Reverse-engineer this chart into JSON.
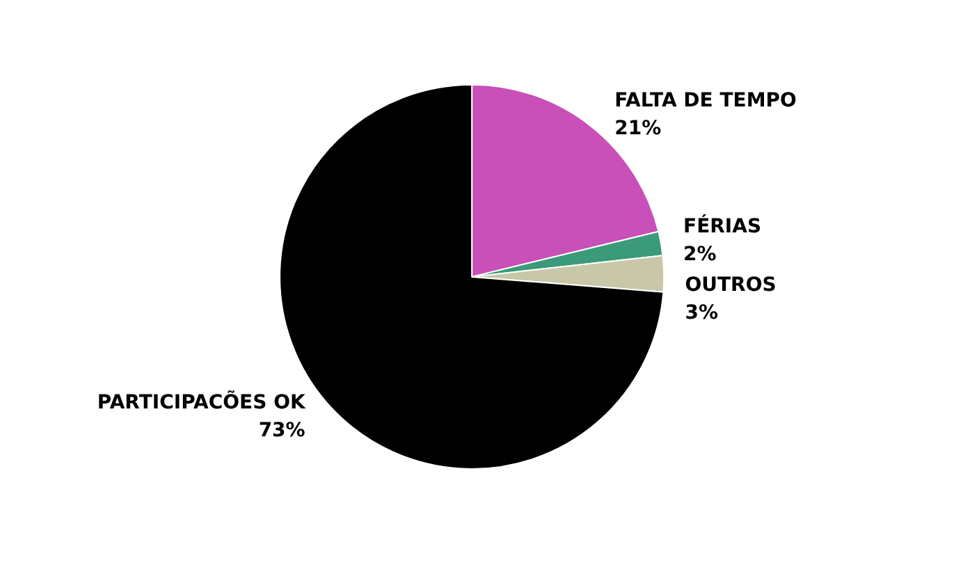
{
  "chart_data": {
    "type": "pie",
    "categories": [
      "FALTA DE TEMPO",
      "FÉRIAS",
      "OUTROS",
      "PARTICIPACÕES OK"
    ],
    "values": [
      21,
      2,
      3,
      73
    ],
    "value_labels": [
      "21%",
      "2%",
      "3%",
      "73%"
    ],
    "colors": [
      "#c850b8",
      "#3a9a7a",
      "#c8c8a8",
      "#000000"
    ],
    "legend": false
  }
}
